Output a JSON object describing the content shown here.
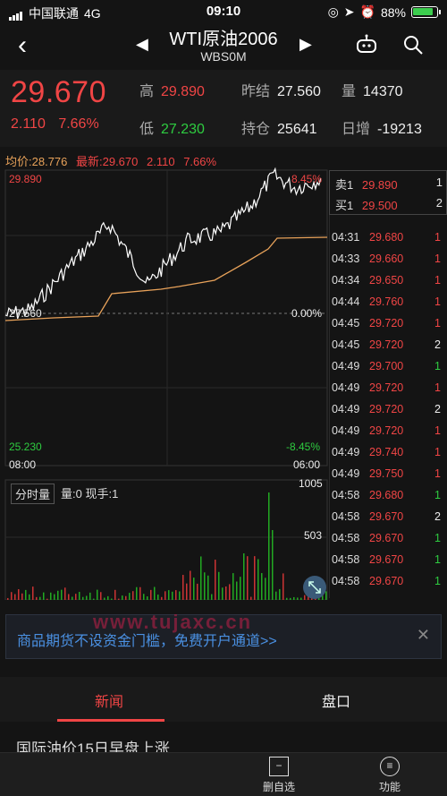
{
  "status_bar": {
    "carrier": "中国联通",
    "network": "4G",
    "time": "09:10",
    "battery": "88%"
  },
  "nav": {
    "title": "WTI原油2006",
    "subtitle": "WBS0M"
  },
  "quote": {
    "price": "29.670",
    "change": "2.110",
    "change_pct": "7.66%",
    "high_label": "高",
    "high": "29.890",
    "low_label": "低",
    "low": "27.230",
    "prev_settle_label": "昨结",
    "prev_settle": "27.560",
    "open_interest_label": "持仓",
    "open_interest": "25641",
    "volume_label": "量",
    "volume": "14370",
    "daily_change_label": "日增",
    "daily_change": "-19213"
  },
  "chart": {
    "avg_label": "均价:28.776",
    "latest_label": "最新:29.670",
    "latest_change": "2.110",
    "latest_pct": "7.66%",
    "y_top": "29.890",
    "y_top_pct": "8.45%",
    "y_mid": "27.560",
    "y_mid_pct": "0.00%",
    "y_bottom": "25.230",
    "y_bottom_pct": "-8.45%",
    "x_start": "08:00",
    "x_end": "06:00",
    "vol_section_label": "分时量",
    "vol_info": "量:0 现手:1",
    "vol_max": "1005",
    "vol_mid": "503"
  },
  "orderbook": {
    "ask_label": "卖1",
    "ask_price": "29.890",
    "ask_qty": "1",
    "bid_label": "买1",
    "bid_price": "29.500",
    "bid_qty": "2"
  },
  "trades": [
    {
      "time": "04:31",
      "price": "29.680",
      "qty": "1",
      "dir": "red"
    },
    {
      "time": "04:33",
      "price": "29.660",
      "qty": "1",
      "dir": "red"
    },
    {
      "time": "04:34",
      "price": "29.650",
      "qty": "1",
      "dir": "red"
    },
    {
      "time": "04:44",
      "price": "29.760",
      "qty": "1",
      "dir": "red"
    },
    {
      "time": "04:45",
      "price": "29.720",
      "qty": "1",
      "dir": "red"
    },
    {
      "time": "04:45",
      "price": "29.720",
      "qty": "2",
      "dir": "white"
    },
    {
      "time": "04:49",
      "price": "29.700",
      "qty": "1",
      "dir": "green"
    },
    {
      "time": "04:49",
      "price": "29.720",
      "qty": "1",
      "dir": "red"
    },
    {
      "time": "04:49",
      "price": "29.720",
      "qty": "2",
      "dir": "white"
    },
    {
      "time": "04:49",
      "price": "29.720",
      "qty": "1",
      "dir": "red"
    },
    {
      "time": "04:49",
      "price": "29.740",
      "qty": "1",
      "dir": "red"
    },
    {
      "time": "04:49",
      "price": "29.750",
      "qty": "1",
      "dir": "red"
    },
    {
      "time": "04:58",
      "price": "29.680",
      "qty": "1",
      "dir": "green"
    },
    {
      "time": "04:58",
      "price": "29.670",
      "qty": "2",
      "dir": "white"
    },
    {
      "time": "04:58",
      "price": "29.670",
      "qty": "1",
      "dir": "green"
    },
    {
      "time": "04:58",
      "price": "29.670",
      "qty": "1",
      "dir": "green"
    },
    {
      "time": "04:58",
      "price": "29.670",
      "qty": "1",
      "dir": "green"
    }
  ],
  "banner": {
    "text": "商品期货不设资金门槛，免费开户通道>>",
    "watermark": "www.tujaxc.cn"
  },
  "tabs": [
    {
      "label": "新闻"
    },
    {
      "label": "盘口"
    }
  ],
  "news_headline": "国际油价15日早盘上涨",
  "bottom": {
    "delete_label": "删自选",
    "function_label": "功能"
  },
  "colors": {
    "up": "#f04545",
    "down": "#2ecc40",
    "avg_line": "#e8a25a",
    "price_line": "#ffffff"
  }
}
